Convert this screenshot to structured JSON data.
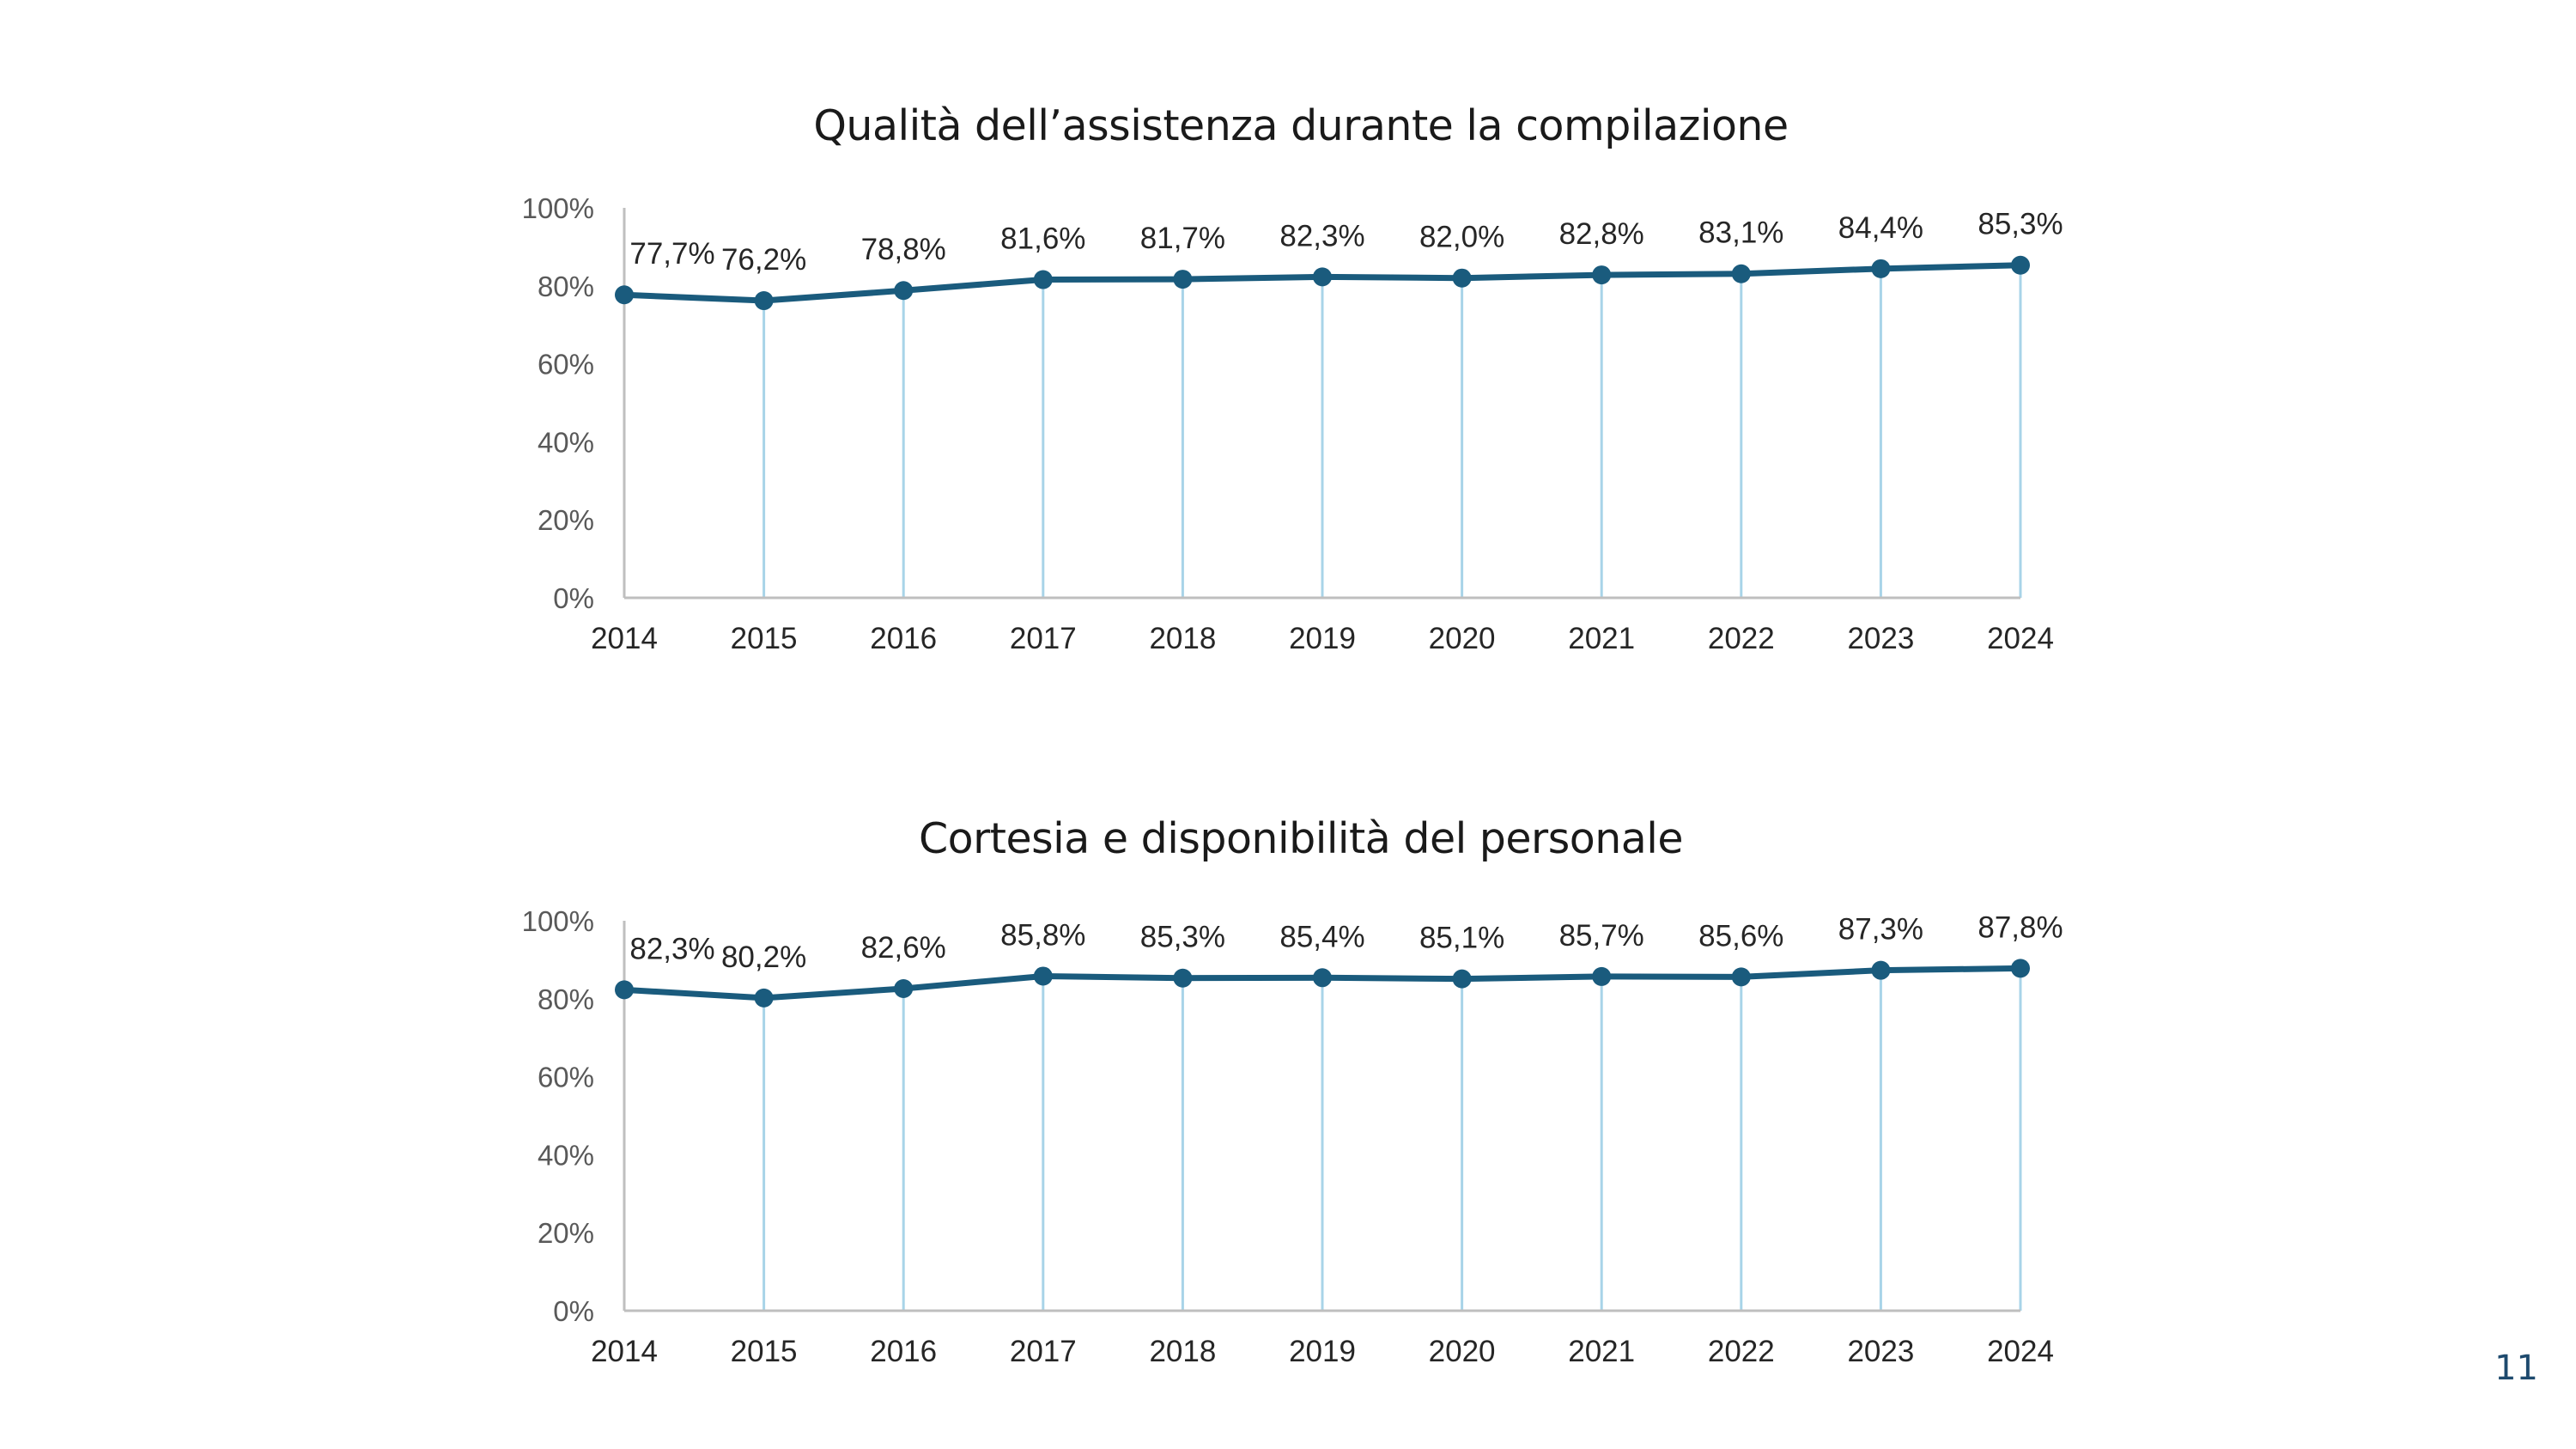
{
  "page_number": "11",
  "colors": {
    "series_line": "#1a5b7d",
    "drop_lines": "#a8d4e8",
    "axis": "#bfbfbf",
    "tick_label": "#595959",
    "data_label": "#262626"
  },
  "chart_data": [
    {
      "type": "line",
      "title": "Qualità dell’assistenza durante la compilazione",
      "xlabel": "",
      "ylabel": "",
      "categories": [
        "2014",
        "2015",
        "2016",
        "2017",
        "2018",
        "2019",
        "2020",
        "2021",
        "2022",
        "2023",
        "2024"
      ],
      "values": [
        77.7,
        76.2,
        78.8,
        81.6,
        81.7,
        82.3,
        82.0,
        82.8,
        83.1,
        84.4,
        85.3
      ],
      "data_labels": [
        "77,7%",
        "76,2%",
        "78,8%",
        "81,6%",
        "81,7%",
        "82,3%",
        "82,0%",
        "82,8%",
        "83,1%",
        "84,4%",
        "85,3%"
      ],
      "y_ticks": [
        0,
        20,
        40,
        60,
        80,
        100
      ],
      "y_tick_labels": [
        "0%",
        "20%",
        "40%",
        "60%",
        "80%",
        "100%"
      ],
      "ylim": [
        0,
        100
      ],
      "drop_lines": true,
      "grid": false,
      "legend": "none"
    },
    {
      "type": "line",
      "title": "Cortesia e disponibilità del personale",
      "xlabel": "",
      "ylabel": "",
      "categories": [
        "2014",
        "2015",
        "2016",
        "2017",
        "2018",
        "2019",
        "2020",
        "2021",
        "2022",
        "2023",
        "2024"
      ],
      "values": [
        82.3,
        80.2,
        82.6,
        85.8,
        85.3,
        85.4,
        85.1,
        85.7,
        85.6,
        87.3,
        87.8
      ],
      "data_labels": [
        "82,3%",
        "80,2%",
        "82,6%",
        "85,8%",
        "85,3%",
        "85,4%",
        "85,1%",
        "85,7%",
        "85,6%",
        "87,3%",
        "87,8%"
      ],
      "y_ticks": [
        0,
        20,
        40,
        60,
        80,
        100
      ],
      "y_tick_labels": [
        "0%",
        "20%",
        "40%",
        "60%",
        "80%",
        "100%"
      ],
      "ylim": [
        0,
        100
      ],
      "drop_lines": true,
      "grid": false,
      "legend": "none"
    }
  ]
}
